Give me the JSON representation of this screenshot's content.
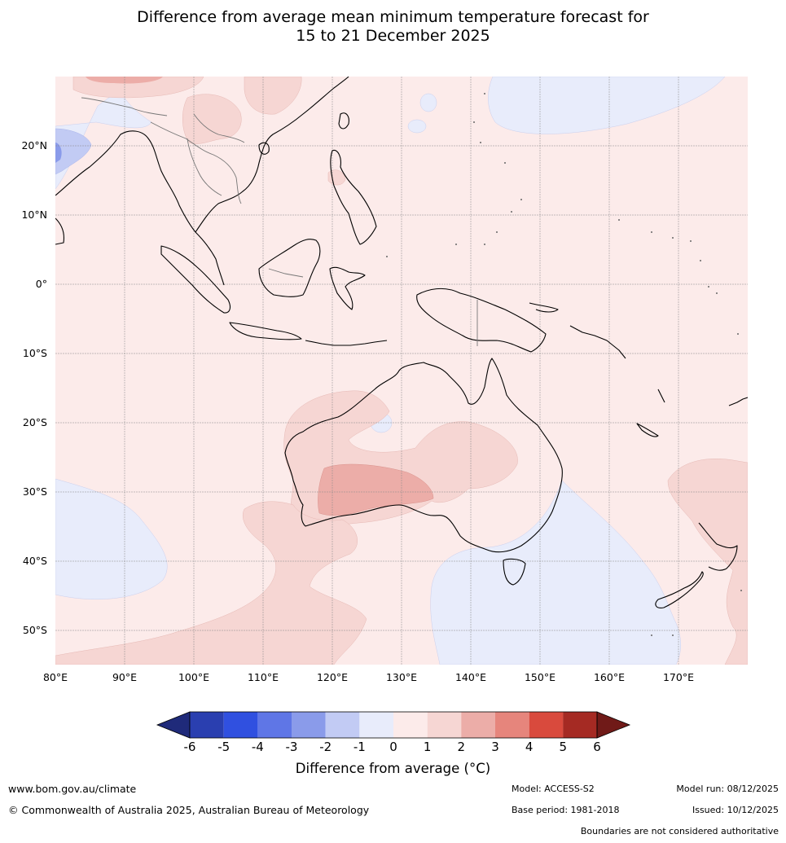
{
  "title": {
    "line1": "Difference from average mean minimum temperature forecast for",
    "line2": "15 to 21 December 2025"
  },
  "map": {
    "lat_labels": [
      "20°N",
      "10°N",
      "0°",
      "10°S",
      "20°S",
      "30°S",
      "40°S",
      "50°S"
    ],
    "lon_labels": [
      "80°E",
      "90°E",
      "100°E",
      "110°E",
      "120°E",
      "130°E",
      "140°E",
      "150°E",
      "160°E",
      "170°E"
    ],
    "extent": {
      "lon": [
        80,
        180
      ],
      "lat": [
        -55,
        30
      ]
    }
  },
  "colorbar": {
    "ticks": [
      "-6",
      "-5",
      "-4",
      "-3",
      "-2",
      "-1",
      "0",
      "1",
      "2",
      "3",
      "4",
      "5",
      "6"
    ],
    "colors": [
      "#1f2a7a",
      "#2a3fb0",
      "#3050e0",
      "#5f76e6",
      "#8a9bea",
      "#c2cbf4",
      "#e8ecfb",
      "#fcebea",
      "#f6d6d3",
      "#ecada8",
      "#e6857c",
      "#d94a3d",
      "#a52a23",
      "#701a18"
    ],
    "title": "Difference from average (°C)"
  },
  "footer": {
    "website": "www.bom.gov.au/climate",
    "copyright": "© Commonwealth of Australia 2025, Australian Bureau of Meteorology",
    "model": "Model: ACCESS-S2",
    "model_run": "Model run: 08/12/2025",
    "base_period": "Base period: 1981-2018",
    "issued": "Issued: 10/12/2025",
    "disclaimer": "Boundaries are not considered authoritative"
  }
}
